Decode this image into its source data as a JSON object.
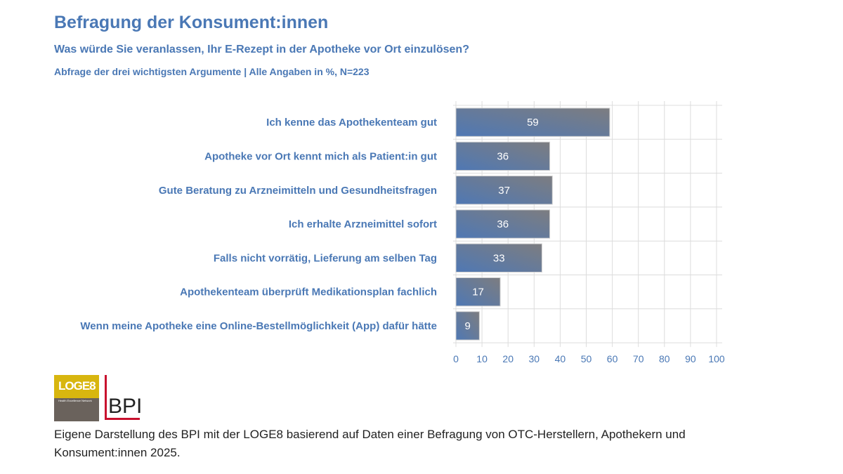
{
  "header": {
    "title": "Befragung der Konsument:innen",
    "subtitle": "Was würde Sie veranlassen, Ihr E-Rezept in der Apotheke vor Ort einzulösen?",
    "note": "Abfrage der drei wichtigsten Argumente | Alle Angaben in %, N=223"
  },
  "chart_data": {
    "type": "bar",
    "orientation": "horizontal",
    "categories": [
      "Ich kenne das Apothekenteam gut",
      "Apotheke vor Ort kennt mich als Patient:in gut",
      "Gute Beratung zu Arzneimitteln und Gesundheitsfragen",
      "Ich erhalte Arzneimittel sofort",
      "Falls nicht vorrätig, Lieferung am selben Tag",
      "Apothekenteam überprüft Medikationsplan fachlich",
      "Wenn meine Apotheke eine Online-Bestellmöglichkeit (App) dafür hätte"
    ],
    "values": [
      59,
      36,
      37,
      36,
      33,
      17,
      9
    ],
    "xlim": [
      0,
      100
    ],
    "xticks": [
      0,
      10,
      20,
      30,
      40,
      50,
      60,
      70,
      80,
      90,
      100
    ],
    "grid": true,
    "colors": {
      "bar_start": "#4f78b4",
      "bar_end": "#7d7d80",
      "label": "#4a78b5"
    }
  },
  "logos": {
    "loge8": "LOGE8",
    "loge8_tag": "Health Excellence Network",
    "bpi": "BPI"
  },
  "footer": "Eigene Darstellung des BPI mit der LOGE8 basierend auf Daten einer Befragung von OTC-Herstellern, Apothekern und Konsument:innen 2025."
}
